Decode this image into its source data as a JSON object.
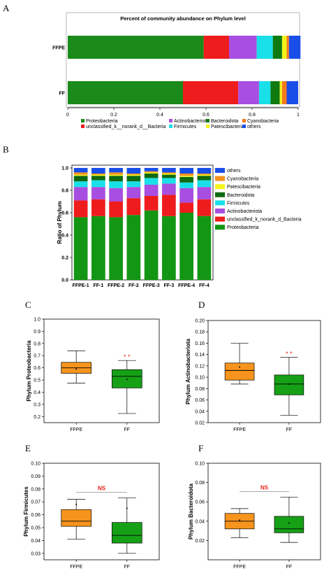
{
  "chart_data": [
    {
      "panel": "A",
      "type": "bar",
      "orientation": "horizontal-stacked",
      "title": "Percent of community abundance on Phylum level",
      "categories": [
        "FFPE",
        "FF"
      ],
      "xlim": [
        0,
        1
      ],
      "xticks": [
        "0",
        "0.2",
        "0.4",
        "0.6",
        "0.8",
        "1"
      ],
      "legend_position": "bottom",
      "series": [
        {
          "name": "Proteobacteria",
          "color": "#1a8a1a",
          "values": [
            0.59,
            0.5
          ]
        },
        {
          "name": "unclassified_k__norank_d__Bacteria",
          "color": "#ee1c1c",
          "values": [
            0.11,
            0.24
          ]
        },
        {
          "name": "Actinobacteriota",
          "color": "#a84ee0",
          "values": [
            0.12,
            0.09
          ]
        },
        {
          "name": "Firmicutes",
          "color": "#19e0e8",
          "values": [
            0.07,
            0.05
          ]
        },
        {
          "name": "Bacteroidota",
          "color": "#0f7a0f",
          "values": [
            0.04,
            0.04
          ]
        },
        {
          "name": "Patescibacteria",
          "color": "#f2f21c",
          "values": [
            0.02,
            0.01
          ]
        },
        {
          "name": "Cyanobacteria",
          "color": "#f57a1c",
          "values": [
            0.01,
            0.02
          ]
        },
        {
          "name": "others",
          "color": "#1a4ee8",
          "values": [
            0.05,
            0.05
          ]
        }
      ]
    },
    {
      "panel": "B",
      "type": "bar",
      "orientation": "vertical-stacked",
      "ylabel": "Ratio of Phylum",
      "categories": [
        "FFPE-1",
        "FF-1",
        "FFPE-2",
        "FF-2",
        "FFPE-3",
        "FF-3",
        "FFPE-4",
        "FF-4"
      ],
      "ylim": [
        0,
        1.0
      ],
      "yticks": [
        "0.0",
        "0.2",
        "0.4",
        "0.6",
        "0.8",
        "1.0"
      ],
      "legend_position": "right",
      "legend_order": [
        "others",
        "Cyanobacteria",
        "Patescibacteria",
        "Bacteroidota",
        "Firmicutes",
        "Actinobacteriota",
        "unclassified_k_norank_d_Bacteria",
        "Proteobacteria"
      ],
      "series": [
        {
          "name": "Proteobacteria",
          "color": "#139613",
          "values": [
            0.56,
            0.57,
            0.56,
            0.58,
            0.62,
            0.57,
            0.6,
            0.57
          ]
        },
        {
          "name": "unclassified_k_norank_d_Bacteria",
          "color": "#ee1c1c",
          "values": [
            0.15,
            0.15,
            0.14,
            0.15,
            0.13,
            0.19,
            0.09,
            0.15
          ]
        },
        {
          "name": "Actinobacteriota",
          "color": "#a84ee0",
          "values": [
            0.12,
            0.11,
            0.12,
            0.1,
            0.1,
            0.1,
            0.13,
            0.11
          ]
        },
        {
          "name": "Firmicutes",
          "color": "#19e0e8",
          "values": [
            0.05,
            0.06,
            0.06,
            0.05,
            0.06,
            0.05,
            0.05,
            0.06
          ]
        },
        {
          "name": "Bacteroidota",
          "color": "#0f6a0f",
          "values": [
            0.05,
            0.04,
            0.05,
            0.05,
            0.04,
            0.03,
            0.05,
            0.04
          ]
        },
        {
          "name": "Patescibacteria",
          "color": "#f5f51c",
          "values": [
            0.01,
            0.01,
            0.01,
            0.01,
            0.01,
            0.01,
            0.01,
            0.01
          ]
        },
        {
          "name": "Cyanobacteria",
          "color": "#f5901c",
          "values": [
            0.02,
            0.01,
            0.02,
            0.01,
            0.01,
            0.01,
            0.02,
            0.01
          ]
        },
        {
          "name": "others",
          "color": "#1a4ee8",
          "values": [
            0.04,
            0.05,
            0.04,
            0.05,
            0.03,
            0.04,
            0.05,
            0.05
          ]
        }
      ]
    },
    {
      "panel": "C",
      "type": "boxplot",
      "ylabel": "Phylum Proteobacteria",
      "categories": [
        "FFPE",
        "FF"
      ],
      "ylim": [
        0.15,
        1.0
      ],
      "yticks": [
        "0.2",
        "0.3",
        "0.4",
        "0.5",
        "0.6",
        "0.7",
        "0.8",
        "0.9",
        "1.0"
      ],
      "boxes": [
        {
          "name": "FFPE",
          "color": "#f7941d",
          "min": 0.475,
          "q1": 0.555,
          "median": 0.6,
          "q3": 0.645,
          "max": 0.74,
          "mean": 0.59
        },
        {
          "name": "FF",
          "color": "#16a016",
          "min": 0.225,
          "q1": 0.435,
          "median": 0.53,
          "q3": 0.585,
          "max": 0.66,
          "mean": 0.505
        }
      ],
      "significance": "* *"
    },
    {
      "panel": "D",
      "type": "boxplot",
      "ylabel": "Phylum Actinobacteriota",
      "categories": [
        "FFPE",
        "FF"
      ],
      "ylim": [
        0.02,
        0.2
      ],
      "yticks": [
        "0.02",
        "0.04",
        "0.06",
        "0.08",
        "0.10",
        "0.12",
        "0.14",
        "0.16",
        "0.18",
        "0.20"
      ],
      "boxes": [
        {
          "name": "FFPE",
          "color": "#f7941d",
          "min": 0.088,
          "q1": 0.095,
          "median": 0.112,
          "q3": 0.125,
          "max": 0.16,
          "mean": 0.118
        },
        {
          "name": "FF",
          "color": "#16a016",
          "min": 0.033,
          "q1": 0.069,
          "median": 0.088,
          "q3": 0.104,
          "max": 0.135,
          "mean": 0.088
        }
      ],
      "significance": "* *"
    },
    {
      "panel": "E",
      "type": "boxplot",
      "ylabel": "Phylum Firmicutes",
      "categories": [
        "FFPE",
        "FF"
      ],
      "ylim": [
        0.025,
        0.1
      ],
      "yticks": [
        "0.03",
        "0.04",
        "0.05",
        "0.06",
        "0.07",
        "0.08",
        "0.09",
        "0.10"
      ],
      "boxes": [
        {
          "name": "FFPE",
          "color": "#f7941d",
          "min": 0.041,
          "q1": 0.051,
          "median": 0.055,
          "q3": 0.064,
          "max": 0.072,
          "mean": 0.068
        },
        {
          "name": "FF",
          "color": "#16a016",
          "min": 0.03,
          "q1": 0.038,
          "median": 0.044,
          "q3": 0.054,
          "max": 0.073,
          "mean": 0.065
        }
      ],
      "significance": "NS"
    },
    {
      "panel": "F",
      "type": "boxplot",
      "ylabel": "Phylum Bacteroidota",
      "categories": [
        "FFPE",
        "FF"
      ],
      "ylim": [
        0.0,
        0.1
      ],
      "yticks": [
        "0.02",
        "0.04",
        "0.06",
        "0.08",
        "0.10"
      ],
      "boxes": [
        {
          "name": "FFPE",
          "color": "#f7941d",
          "min": 0.023,
          "q1": 0.032,
          "median": 0.04,
          "q3": 0.048,
          "max": 0.053,
          "mean": 0.041
        },
        {
          "name": "FF",
          "color": "#16a016",
          "min": 0.018,
          "q1": 0.028,
          "median": 0.032,
          "q3": 0.045,
          "max": 0.065,
          "mean": 0.038
        }
      ],
      "significance": "NS"
    }
  ],
  "panel_labels": [
    "A",
    "B",
    "C",
    "D",
    "E",
    "F"
  ],
  "colors": {
    "axis": "#000000",
    "frame": "#555555",
    "significance": "#e8231c"
  }
}
